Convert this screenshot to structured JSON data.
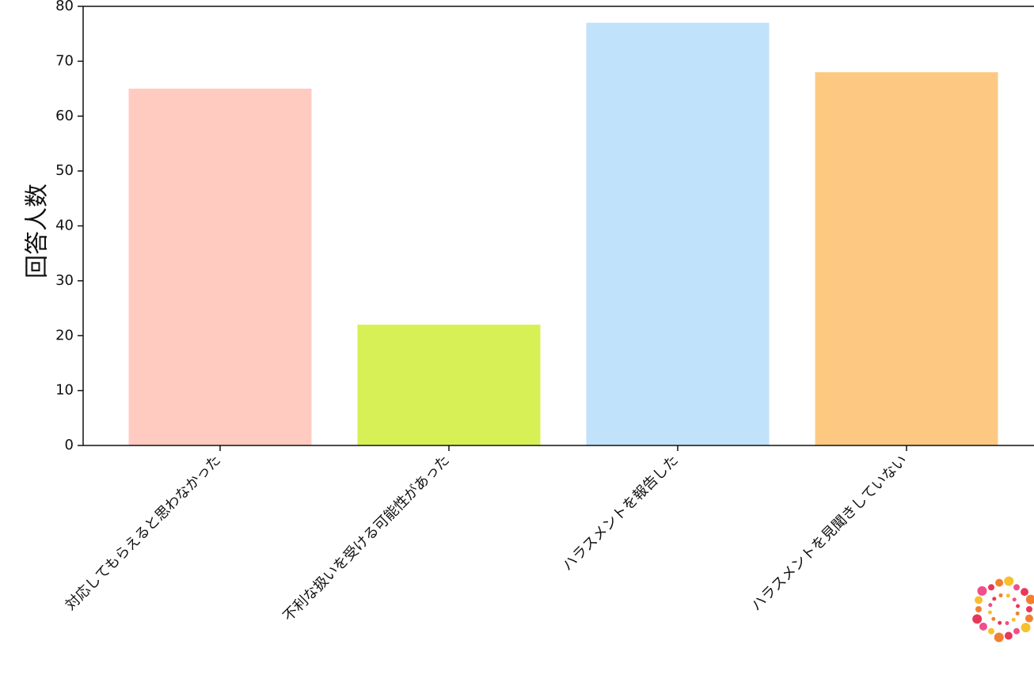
{
  "chart_data": {
    "type": "bar",
    "title": "",
    "xlabel": "",
    "ylabel": "回答人数",
    "ylim": [
      0,
      80
    ],
    "yticks": [
      0,
      10,
      20,
      30,
      40,
      50,
      60,
      70,
      80
    ],
    "categories": [
      "対応してもらえると思わなかった",
      "不利な扱いを受ける可能性があった",
      "ハラスメントを報告した",
      "ハラスメントを見聞きしていない"
    ],
    "values": [
      65,
      22,
      77,
      68
    ],
    "colors": [
      "#ffcbc1",
      "#d7f055",
      "#c0e2fb",
      "#fdc982"
    ],
    "grid": false,
    "legend": "none"
  },
  "logo": {
    "icon": "dotted-ring-logo-icon",
    "colors": [
      "#e8385a",
      "#f08030",
      "#f7c030",
      "#ef4f8a"
    ]
  }
}
